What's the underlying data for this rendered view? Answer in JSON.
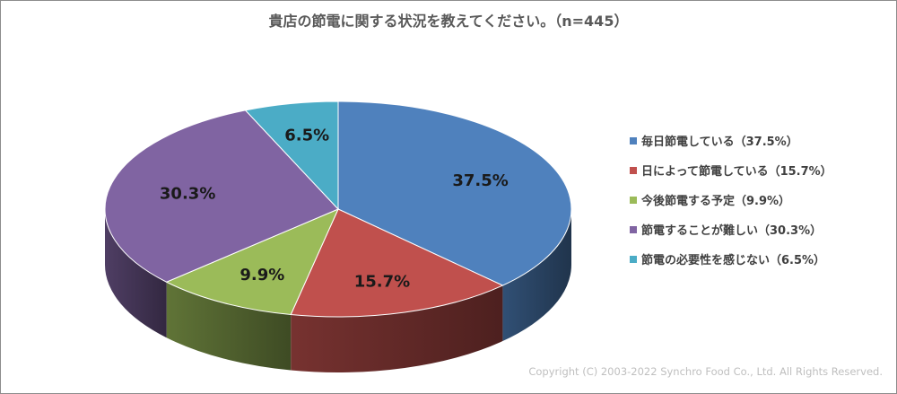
{
  "chart_data": {
    "type": "pie",
    "title": "貴店の節電に関する状況を教えてください。（n=445）",
    "slices": [
      {
        "label": "毎日節電している（37.5%）",
        "value": 37.5,
        "data_label": "37.5%",
        "color": "#4f81bd"
      },
      {
        "label": "日によって節電している（15.7%）",
        "value": 15.7,
        "data_label": "15.7%",
        "color": "#c0504d"
      },
      {
        "label": "今後節電する予定（9.9%）",
        "value": 9.9,
        "data_label": "9.9%",
        "color": "#9bbb59"
      },
      {
        "label": "節電することが難しい（30.3%）",
        "value": 30.3,
        "data_label": "30.3%",
        "color": "#8064a2"
      },
      {
        "label": "節電の必要性を感じない（6.5%）",
        "value": 6.5,
        "data_label": "6.5%",
        "color": "#4bacc6"
      }
    ],
    "legend_position": "right"
  },
  "copyright": "Copyright (C) 2003-2022   Synchro Food Co., Ltd. All Rights Reserved."
}
